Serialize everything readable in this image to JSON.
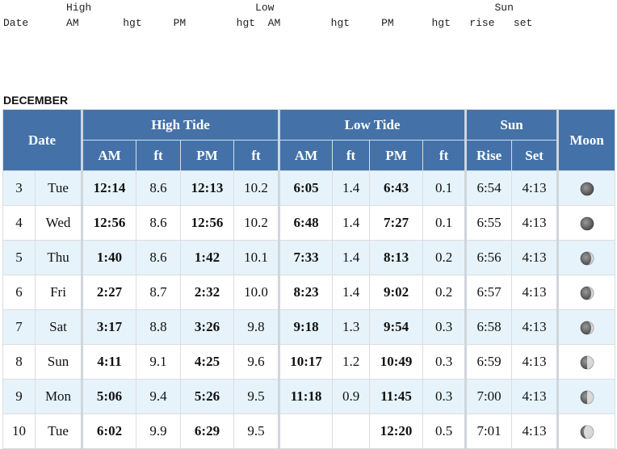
{
  "preheader": {
    "line1": "          High                          Low                                   Sun",
    "line2": "Date      AM       hgt     PM        hgt  AM        hgt     PM      hgt   rise   set"
  },
  "month": "DECEMBER",
  "headers": {
    "date": "Date",
    "high_tide": "High Tide",
    "low_tide": "Low Tide",
    "sun": "Sun",
    "moon": "Moon",
    "am": "AM",
    "ft": "ft",
    "pm": "PM",
    "rise": "Rise",
    "set": "Set"
  },
  "rows": [
    {
      "day": "3",
      "weekday": "Tue",
      "high_am": "12:14",
      "high_am_ft": "8.6",
      "high_pm": "12:13",
      "high_pm_ft": "10.2",
      "low_am": "6:05",
      "low_am_ft": "1.4",
      "low_pm": "6:43",
      "low_pm_ft": "0.1",
      "rise": "6:54",
      "set": "4:13",
      "moon_icon": "moon-new-icon"
    },
    {
      "day": "4",
      "weekday": "Wed",
      "high_am": "12:56",
      "high_am_ft": "8.6",
      "high_pm": "12:56",
      "high_pm_ft": "10.2",
      "low_am": "6:48",
      "low_am_ft": "1.4",
      "low_pm": "7:27",
      "low_pm_ft": "0.1",
      "rise": "6:55",
      "set": "4:13",
      "moon_icon": "moon-new-icon"
    },
    {
      "day": "5",
      "weekday": "Thu",
      "high_am": "1:40",
      "high_am_ft": "8.6",
      "high_pm": "1:42",
      "high_pm_ft": "10.1",
      "low_am": "7:33",
      "low_am_ft": "1.4",
      "low_pm": "8:13",
      "low_pm_ft": "0.2",
      "rise": "6:56",
      "set": "4:13",
      "moon_icon": "moon-waxing-crescent-icon"
    },
    {
      "day": "6",
      "weekday": "Fri",
      "high_am": "2:27",
      "high_am_ft": "8.7",
      "high_pm": "2:32",
      "high_pm_ft": "10.0",
      "low_am": "8:23",
      "low_am_ft": "1.4",
      "low_pm": "9:02",
      "low_pm_ft": "0.2",
      "rise": "6:57",
      "set": "4:13",
      "moon_icon": "moon-waxing-crescent-icon"
    },
    {
      "day": "7",
      "weekday": "Sat",
      "high_am": "3:17",
      "high_am_ft": "8.8",
      "high_pm": "3:26",
      "high_pm_ft": "9.8",
      "low_am": "9:18",
      "low_am_ft": "1.3",
      "low_pm": "9:54",
      "low_pm_ft": "0.3",
      "rise": "6:58",
      "set": "4:13",
      "moon_icon": "moon-waxing-crescent-icon"
    },
    {
      "day": "8",
      "weekday": "Sun",
      "high_am": "4:11",
      "high_am_ft": "9.1",
      "high_pm": "4:25",
      "high_pm_ft": "9.6",
      "low_am": "10:17",
      "low_am_ft": "1.2",
      "low_pm": "10:49",
      "low_pm_ft": "0.3",
      "rise": "6:59",
      "set": "4:13",
      "moon_icon": "moon-first-quarter-icon"
    },
    {
      "day": "9",
      "weekday": "Mon",
      "high_am": "5:06",
      "high_am_ft": "9.4",
      "high_pm": "5:26",
      "high_pm_ft": "9.5",
      "low_am": "11:18",
      "low_am_ft": "0.9",
      "low_pm": "11:45",
      "low_pm_ft": "0.3",
      "rise": "7:00",
      "set": "4:13",
      "moon_icon": "moon-first-quarter-icon"
    },
    {
      "day": "10",
      "weekday": "Tue",
      "high_am": "6:02",
      "high_am_ft": "9.9",
      "high_pm": "6:29",
      "high_pm_ft": "9.5",
      "low_am": "",
      "low_am_ft": "",
      "low_pm": "12:20",
      "low_pm_ft": "0.5",
      "rise": "7:01",
      "set": "4:13",
      "moon_icon": "moon-waxing-gibbous-icon"
    }
  ]
}
